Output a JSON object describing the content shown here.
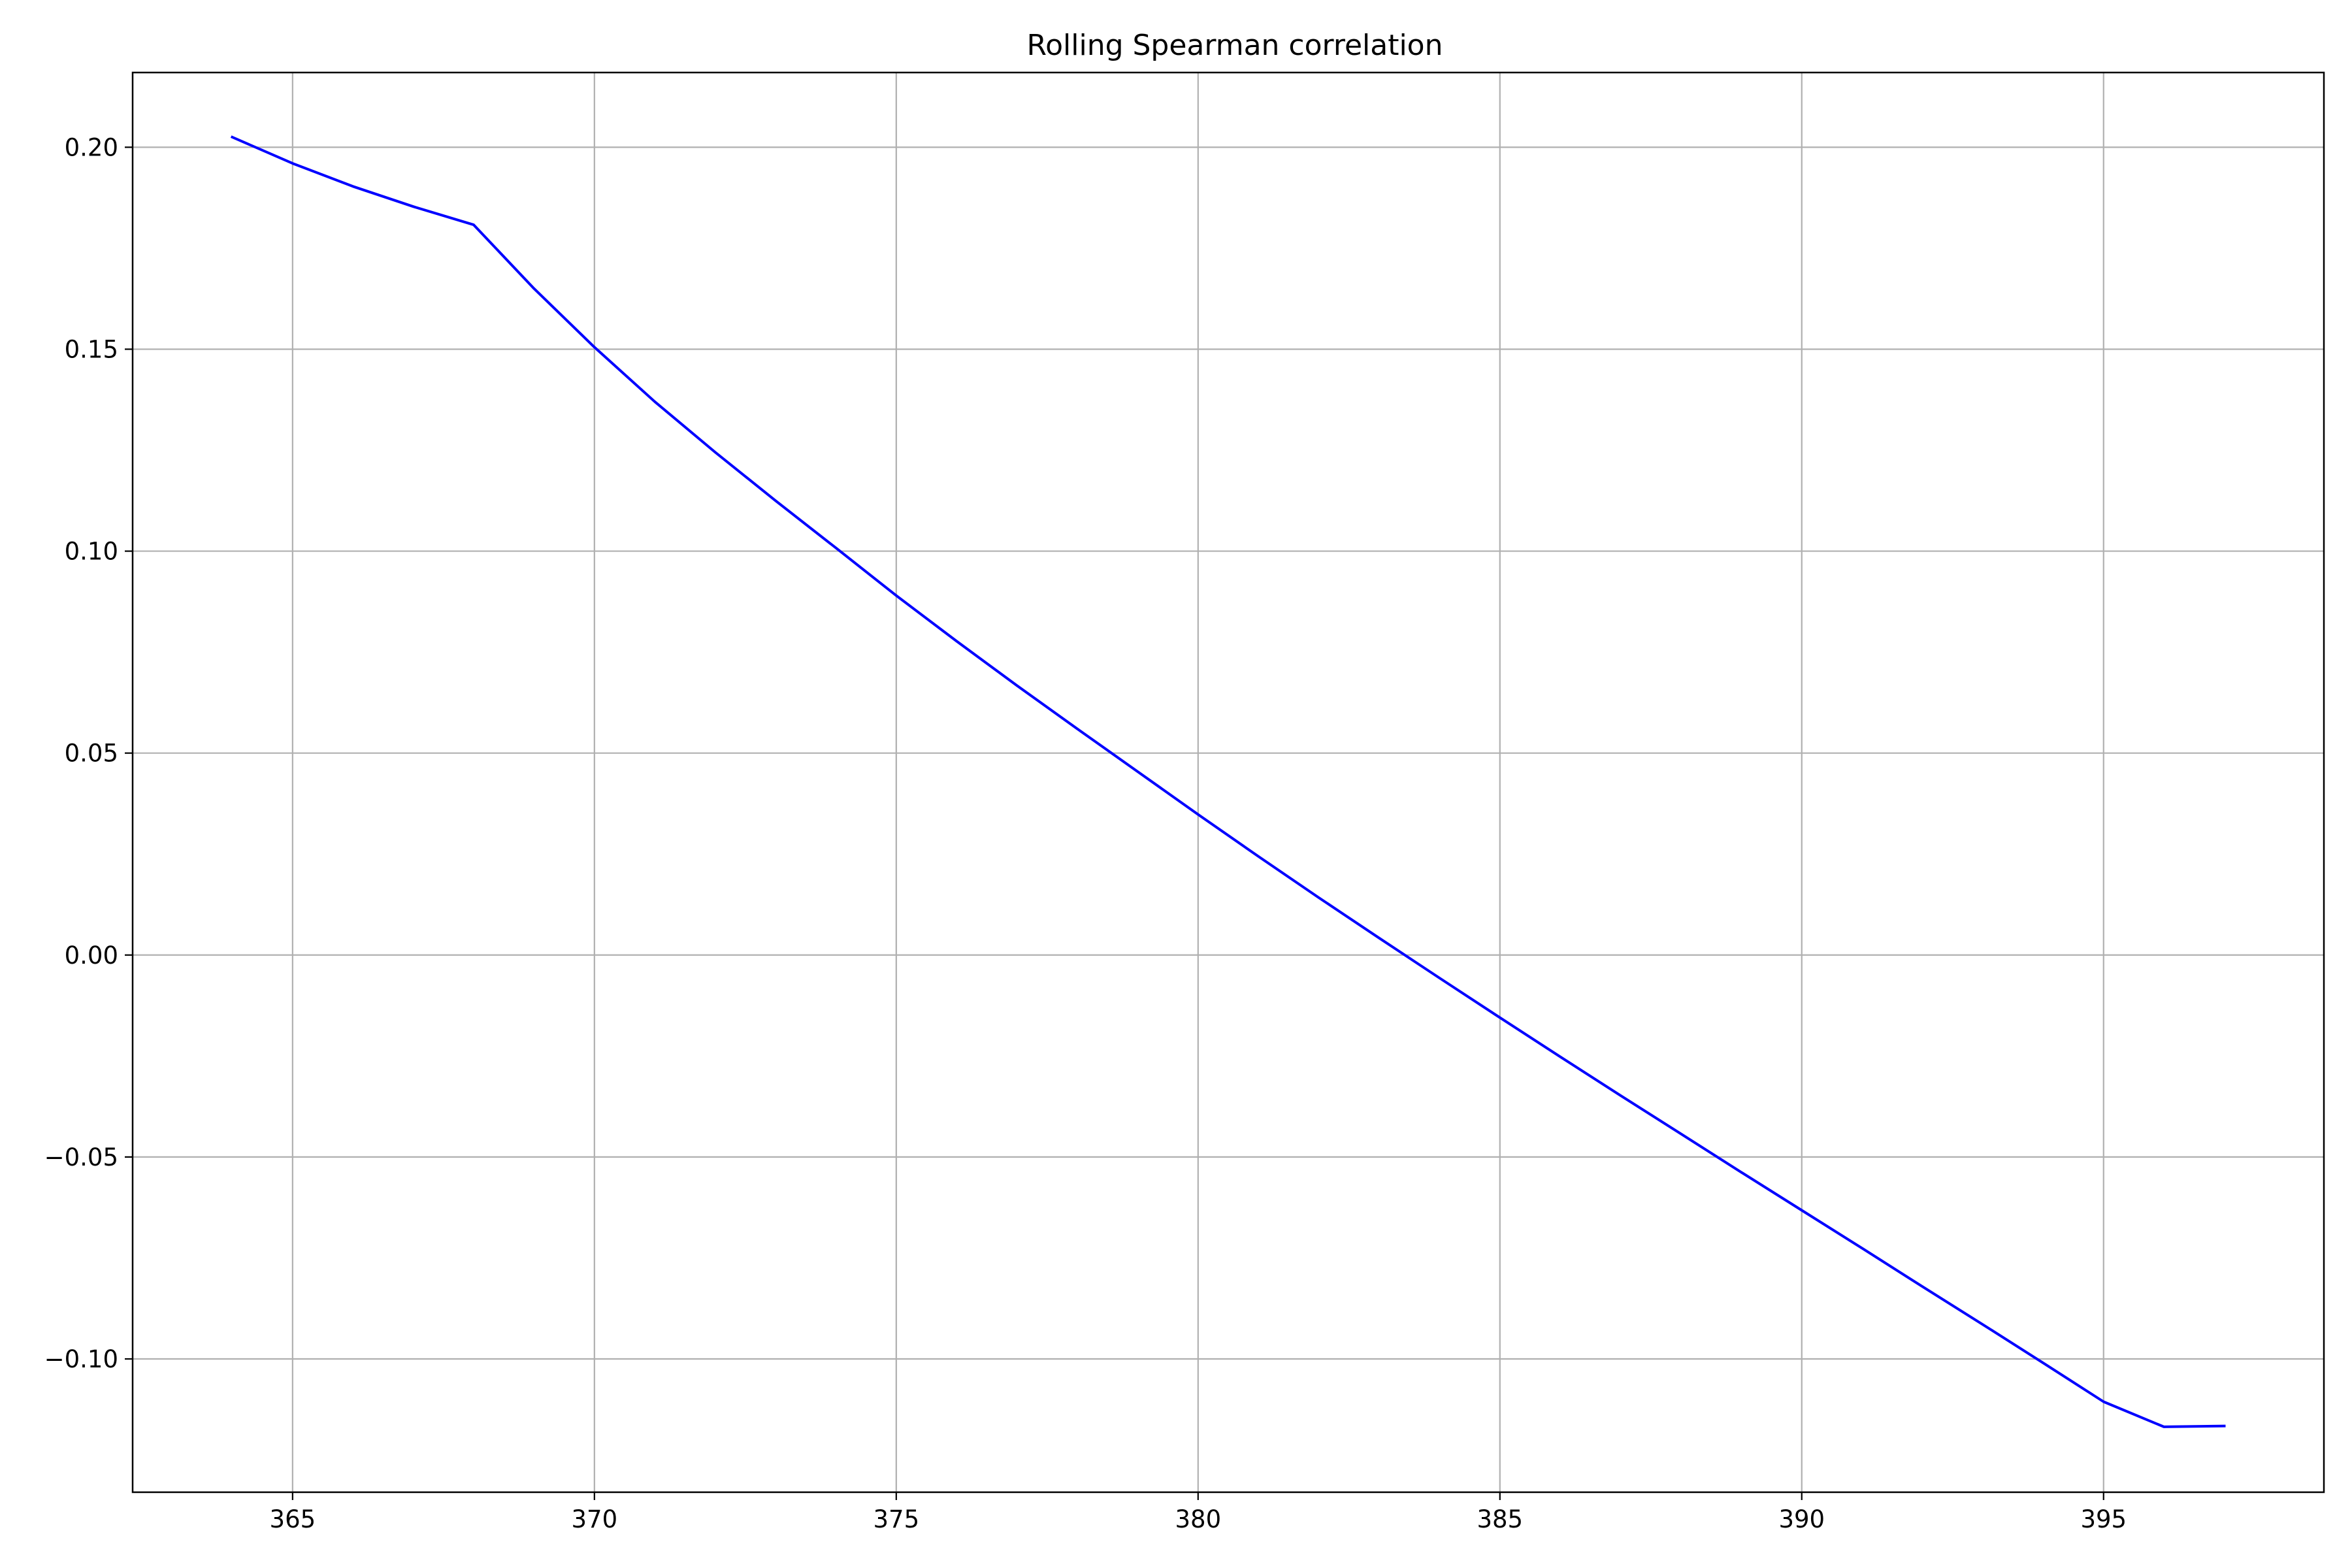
{
  "chart_data": {
    "type": "line",
    "title": "Rolling Spearman correlation",
    "xlabel": "",
    "ylabel": "",
    "xlim": [
      362.35,
      398.65
    ],
    "ylim": [
      -0.133,
      0.2185
    ],
    "x_ticks": [
      365,
      370,
      375,
      380,
      385,
      390,
      395
    ],
    "y_ticks": [
      0.2,
      0.15,
      0.1,
      0.05,
      0.0,
      -0.05,
      -0.1
    ],
    "x_tick_labels": [
      "365",
      "370",
      "375",
      "380",
      "385",
      "390",
      "395"
    ],
    "y_tick_labels": [
      "0.20",
      "0.15",
      "0.10",
      "0.05",
      "0.00",
      "−0.05",
      "−0.10"
    ],
    "grid": true,
    "series": [
      {
        "color": "#0000ff",
        "x": [
          364,
          365,
          366,
          367,
          368,
          369,
          370,
          371,
          372,
          373,
          374,
          375,
          376,
          377,
          378,
          379,
          380,
          381,
          382,
          383,
          384,
          385,
          386,
          387,
          388,
          389,
          390,
          391,
          392,
          393,
          394,
          395,
          396,
          397
        ],
        "y": [
          0.2025,
          0.196,
          0.1903,
          0.1853,
          0.1808,
          0.165,
          0.1505,
          0.137,
          0.1245,
          0.1125,
          0.1008,
          0.089,
          0.0777,
          0.0667,
          0.056,
          0.0454,
          0.0348,
          0.0244,
          0.0142,
          0.0042,
          -0.0057,
          -0.0155,
          -0.0252,
          -0.0348,
          -0.0443,
          -0.0538,
          -0.0632,
          -0.0726,
          -0.0821,
          -0.0915,
          -0.101,
          -0.1106,
          -0.1168,
          -0.1166
        ]
      }
    ],
    "colors": {
      "line": "#0000ff",
      "grid": "#b0b0b0",
      "axes": "#000000",
      "background": "#ffffff"
    }
  }
}
